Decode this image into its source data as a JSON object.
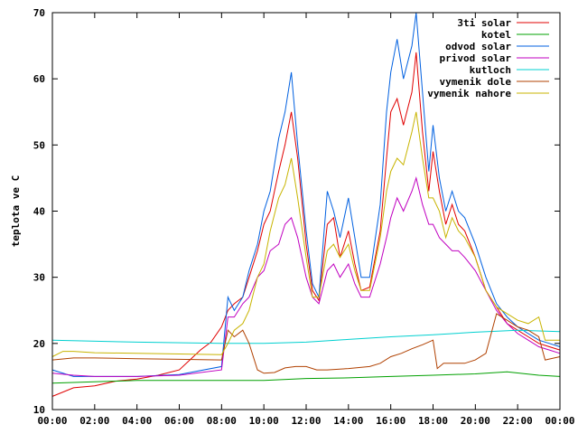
{
  "chart_data": {
    "type": "line",
    "title": "",
    "xlabel": "",
    "ylabel": "teplota ve C",
    "xlim": [
      0,
      24
    ],
    "ylim": [
      10,
      70
    ],
    "grid": false,
    "legend_position": "top-right",
    "x_tick_labels": [
      "00:00",
      "02:00",
      "04:00",
      "06:00",
      "08:00",
      "10:00",
      "12:00",
      "14:00",
      "16:00",
      "18:00",
      "20:00",
      "22:00",
      "00:00"
    ],
    "y_tick_labels": [
      "10",
      "20",
      "30",
      "40",
      "50",
      "60",
      "70"
    ],
    "series": [
      {
        "name": "3ti solar",
        "color": "#e00000",
        "points": [
          [
            0,
            12
          ],
          [
            1,
            13.3
          ],
          [
            2,
            13.6
          ],
          [
            3,
            14.3
          ],
          [
            4,
            14.6
          ],
          [
            5,
            15.2
          ],
          [
            6,
            16
          ],
          [
            6.5,
            17.5
          ],
          [
            7,
            19
          ],
          [
            7.5,
            20.2
          ],
          [
            8,
            22.5
          ],
          [
            8.3,
            25
          ],
          [
            8.6,
            26
          ],
          [
            9,
            27
          ],
          [
            9.3,
            30
          ],
          [
            9.7,
            34
          ],
          [
            10,
            38
          ],
          [
            10.3,
            40
          ],
          [
            10.7,
            46
          ],
          [
            11,
            50
          ],
          [
            11.3,
            55
          ],
          [
            11.6,
            48
          ],
          [
            12,
            35
          ],
          [
            12.3,
            28
          ],
          [
            12.6,
            26.5
          ],
          [
            13,
            38
          ],
          [
            13.3,
            39
          ],
          [
            13.6,
            33
          ],
          [
            14,
            37
          ],
          [
            14.3,
            32
          ],
          [
            14.6,
            28
          ],
          [
            15,
            28.5
          ],
          [
            15.5,
            37
          ],
          [
            15.8,
            48
          ],
          [
            16,
            55
          ],
          [
            16.3,
            57
          ],
          [
            16.6,
            53
          ],
          [
            17,
            58
          ],
          [
            17.2,
            64
          ],
          [
            17.5,
            52
          ],
          [
            17.8,
            43
          ],
          [
            18,
            49
          ],
          [
            18.3,
            43
          ],
          [
            18.6,
            38
          ],
          [
            18.9,
            41
          ],
          [
            19.2,
            38
          ],
          [
            19.5,
            37
          ],
          [
            20,
            33
          ],
          [
            20.5,
            28
          ],
          [
            21,
            25.5
          ],
          [
            21.5,
            23
          ],
          [
            22,
            22
          ],
          [
            22.5,
            21
          ],
          [
            23,
            20
          ],
          [
            23.5,
            19.5
          ],
          [
            24,
            19
          ]
        ]
      },
      {
        "name": "kotel",
        "color": "#00a000",
        "points": [
          [
            0,
            14
          ],
          [
            4,
            14.4
          ],
          [
            8,
            14.4
          ],
          [
            10,
            14.4
          ],
          [
            12,
            14.7
          ],
          [
            14,
            14.8
          ],
          [
            16,
            15
          ],
          [
            18,
            15.2
          ],
          [
            20,
            15.4
          ],
          [
            21.5,
            15.7
          ],
          [
            23,
            15.2
          ],
          [
            24,
            15
          ]
        ]
      },
      {
        "name": "odvod solar",
        "color": "#0060e0",
        "points": [
          [
            0,
            16
          ],
          [
            1,
            15
          ],
          [
            2,
            15
          ],
          [
            4,
            15
          ],
          [
            6,
            15.3
          ],
          [
            8,
            16.5
          ],
          [
            8.3,
            27
          ],
          [
            8.6,
            25
          ],
          [
            9,
            27
          ],
          [
            9.3,
            31
          ],
          [
            9.7,
            35
          ],
          [
            10,
            40
          ],
          [
            10.3,
            43
          ],
          [
            10.7,
            51
          ],
          [
            11,
            55
          ],
          [
            11.3,
            61
          ],
          [
            11.6,
            50
          ],
          [
            12,
            37
          ],
          [
            12.3,
            29
          ],
          [
            12.6,
            27
          ],
          [
            13,
            43
          ],
          [
            13.3,
            40
          ],
          [
            13.6,
            36
          ],
          [
            14,
            42
          ],
          [
            14.3,
            36
          ],
          [
            14.6,
            30
          ],
          [
            15,
            30
          ],
          [
            15.5,
            41
          ],
          [
            15.8,
            55
          ],
          [
            16,
            61
          ],
          [
            16.3,
            66
          ],
          [
            16.6,
            60
          ],
          [
            17,
            65
          ],
          [
            17.2,
            70
          ],
          [
            17.5,
            58
          ],
          [
            17.8,
            46
          ],
          [
            18,
            53
          ],
          [
            18.3,
            45
          ],
          [
            18.6,
            40
          ],
          [
            18.9,
            43
          ],
          [
            19.2,
            40
          ],
          [
            19.5,
            39
          ],
          [
            20,
            35
          ],
          [
            20.5,
            30
          ],
          [
            21,
            26
          ],
          [
            21.5,
            24
          ],
          [
            22,
            22.5
          ],
          [
            22.5,
            21.5
          ],
          [
            23,
            20.5
          ],
          [
            23.5,
            20
          ],
          [
            24,
            19.5
          ]
        ]
      },
      {
        "name": "privod solar",
        "color": "#c000c0",
        "points": [
          [
            0,
            15.5
          ],
          [
            1,
            15.2
          ],
          [
            2,
            15
          ],
          [
            4,
            15
          ],
          [
            6,
            15.2
          ],
          [
            8,
            16
          ],
          [
            8.3,
            24
          ],
          [
            8.6,
            24
          ],
          [
            9,
            26
          ],
          [
            9.3,
            27
          ],
          [
            9.7,
            30
          ],
          [
            10,
            31
          ],
          [
            10.3,
            34
          ],
          [
            10.7,
            35
          ],
          [
            11,
            38
          ],
          [
            11.3,
            39
          ],
          [
            11.6,
            36
          ],
          [
            12,
            30
          ],
          [
            12.3,
            27
          ],
          [
            12.6,
            26
          ],
          [
            13,
            31
          ],
          [
            13.3,
            32
          ],
          [
            13.6,
            30
          ],
          [
            14,
            32
          ],
          [
            14.3,
            29
          ],
          [
            14.6,
            27
          ],
          [
            15,
            27
          ],
          [
            15.5,
            32
          ],
          [
            15.8,
            36
          ],
          [
            16,
            39
          ],
          [
            16.3,
            42
          ],
          [
            16.6,
            40
          ],
          [
            17,
            43
          ],
          [
            17.2,
            45
          ],
          [
            17.5,
            41
          ],
          [
            17.8,
            38
          ],
          [
            18,
            38
          ],
          [
            18.3,
            36
          ],
          [
            18.6,
            35
          ],
          [
            18.9,
            34
          ],
          [
            19.2,
            34
          ],
          [
            19.5,
            33
          ],
          [
            20,
            31
          ],
          [
            20.5,
            28
          ],
          [
            21,
            25
          ],
          [
            21.5,
            23
          ],
          [
            22,
            21.5
          ],
          [
            22.5,
            20.5
          ],
          [
            23,
            19.5
          ],
          [
            23.5,
            19
          ],
          [
            24,
            18.5
          ]
        ]
      },
      {
        "name": "kutloch",
        "color": "#00d0d0",
        "points": [
          [
            0,
            20.5
          ],
          [
            4,
            20.2
          ],
          [
            8,
            20
          ],
          [
            10,
            20
          ],
          [
            12,
            20.2
          ],
          [
            14,
            20.6
          ],
          [
            16,
            21
          ],
          [
            18,
            21.3
          ],
          [
            20,
            21.7
          ],
          [
            22,
            22
          ],
          [
            24,
            21.8
          ]
        ]
      },
      {
        "name": "vymenik dole",
        "color": "#b04000",
        "points": [
          [
            0,
            17.5
          ],
          [
            1,
            17.8
          ],
          [
            2,
            17.8
          ],
          [
            4,
            17.7
          ],
          [
            6,
            17.6
          ],
          [
            8,
            17.5
          ],
          [
            8.3,
            22
          ],
          [
            8.6,
            21
          ],
          [
            9,
            22
          ],
          [
            9.3,
            20
          ],
          [
            9.7,
            16
          ],
          [
            10,
            15.5
          ],
          [
            10.5,
            15.6
          ],
          [
            11,
            16.3
          ],
          [
            11.5,
            16.5
          ],
          [
            12,
            16.5
          ],
          [
            12.5,
            16
          ],
          [
            13,
            16
          ],
          [
            14,
            16.2
          ],
          [
            15,
            16.5
          ],
          [
            15.5,
            17
          ],
          [
            16,
            18
          ],
          [
            16.5,
            18.5
          ],
          [
            17,
            19.2
          ],
          [
            17.5,
            19.8
          ],
          [
            18,
            20.5
          ],
          [
            18.2,
            16.2
          ],
          [
            18.5,
            17
          ],
          [
            19,
            17
          ],
          [
            19.5,
            17
          ],
          [
            20,
            17.5
          ],
          [
            20.5,
            18.5
          ],
          [
            21,
            24.5
          ],
          [
            21.5,
            23.5
          ],
          [
            22,
            22.5
          ],
          [
            22.5,
            22
          ],
          [
            23,
            21
          ],
          [
            23.3,
            17.5
          ],
          [
            24,
            18
          ]
        ]
      },
      {
        "name": "vymenik nahore",
        "color": "#c8b400",
        "points": [
          [
            0,
            18
          ],
          [
            0.5,
            18.8
          ],
          [
            1,
            18.8
          ],
          [
            2,
            18.6
          ],
          [
            4,
            18.5
          ],
          [
            6,
            18.4
          ],
          [
            8,
            18.3
          ],
          [
            8.3,
            20
          ],
          [
            8.6,
            22
          ],
          [
            9,
            23
          ],
          [
            9.3,
            25
          ],
          [
            9.7,
            30
          ],
          [
            10,
            32
          ],
          [
            10.3,
            37
          ],
          [
            10.7,
            42
          ],
          [
            11,
            44
          ],
          [
            11.3,
            48
          ],
          [
            11.6,
            42
          ],
          [
            12,
            33
          ],
          [
            12.3,
            27
          ],
          [
            12.6,
            27
          ],
          [
            13,
            34
          ],
          [
            13.3,
            35
          ],
          [
            13.6,
            33
          ],
          [
            14,
            35
          ],
          [
            14.3,
            31
          ],
          [
            14.6,
            28
          ],
          [
            15,
            28
          ],
          [
            15.5,
            36
          ],
          [
            15.8,
            43
          ],
          [
            16,
            46
          ],
          [
            16.3,
            48
          ],
          [
            16.6,
            47
          ],
          [
            17,
            52
          ],
          [
            17.2,
            55
          ],
          [
            17.5,
            48
          ],
          [
            17.8,
            42
          ],
          [
            18,
            42
          ],
          [
            18.3,
            40
          ],
          [
            18.6,
            36
          ],
          [
            18.9,
            39
          ],
          [
            19.2,
            37
          ],
          [
            19.5,
            36
          ],
          [
            20,
            33
          ],
          [
            20.5,
            28
          ],
          [
            21,
            25.5
          ],
          [
            21.5,
            24.5
          ],
          [
            22,
            23.5
          ],
          [
            22.5,
            23
          ],
          [
            23,
            24
          ],
          [
            23.3,
            20.5
          ],
          [
            24,
            20.5
          ]
        ]
      }
    ]
  }
}
